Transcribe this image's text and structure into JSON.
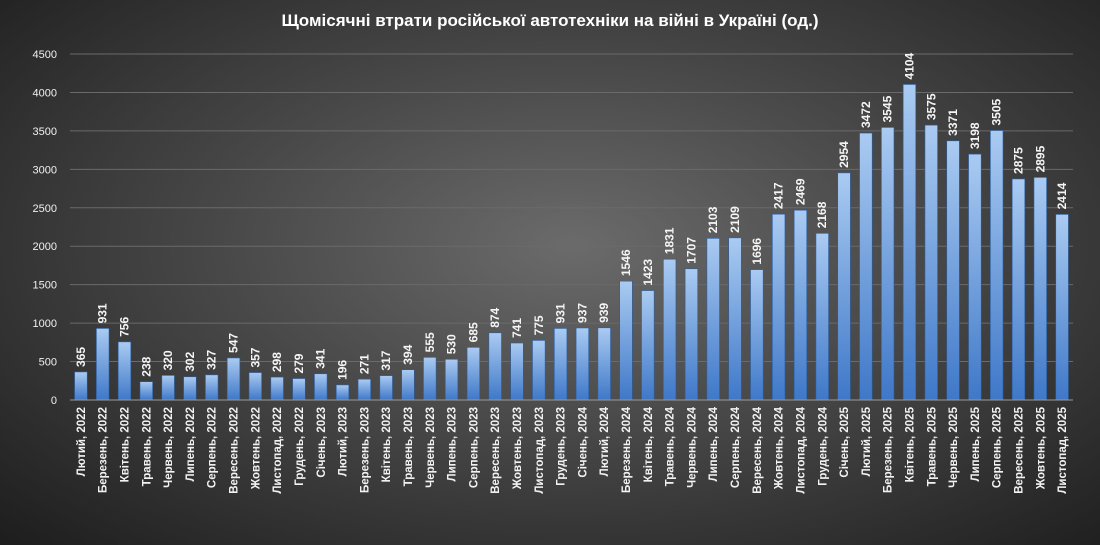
{
  "colors": {
    "bar_top": "#aacbf2",
    "bar_bottom": "#3f78c8",
    "bar_edge": "#2c5d9e",
    "gridline": "#6a6a6a",
    "text": "#ffffff"
  },
  "chart_data": {
    "type": "bar",
    "title": "Щомісячні втрати російської автотехніки на війні в Україні (од.)",
    "xlabel": "",
    "ylabel": "",
    "ylim": [
      0,
      4500
    ],
    "yticks": [
      0,
      500,
      1000,
      1500,
      2000,
      2500,
      3000,
      3500,
      4000,
      4500
    ],
    "grid": true,
    "legend": "none",
    "categories": [
      "Лютий, 2022",
      "Березень, 2022",
      "Квітень, 2022",
      "Травень, 2022",
      "Червень, 2022",
      "Липень, 2022",
      "Серпень, 2022",
      "Вересень, 2022",
      "Жовтень, 2022",
      "Листопад, 2022",
      "Грудень, 2022",
      "Січень, 2023",
      "Лютий, 2023",
      "Березень, 2023",
      "Квітень, 2023",
      "Травень, 2023",
      "Червень, 2023",
      "Липень, 2023",
      "Серпень, 2023",
      "Вересень, 2023",
      "Жовтень, 2023",
      "Листопад, 2023",
      "Грудень, 2023",
      "Січень, 2024",
      "Лютий, 2024",
      "Березень, 2024",
      "Квітень, 2024",
      "Травень, 2024",
      "Червень, 2024",
      "Липень, 2024",
      "Серпень, 2024",
      "Вересень, 2024",
      "Жовтень, 2024",
      "Листопад, 2024",
      "Грудень, 2024",
      "Січень, 2025",
      "Лютий, 2025",
      "Березень, 2025",
      "Квітень, 2025",
      "Травень, 2025",
      "Червень, 2025",
      "Липень, 2025",
      "Серпень, 2025",
      "Вересень, 2025",
      "Жовтень, 2025",
      "Листопад, 2025"
    ],
    "values": [
      365,
      931,
      756,
      238,
      320,
      302,
      327,
      547,
      357,
      298,
      279,
      341,
      196,
      271,
      317,
      394,
      555,
      530,
      685,
      874,
      741,
      775,
      931,
      937,
      939,
      1546,
      1423,
      1831,
      1707,
      2103,
      2109,
      1696,
      2417,
      2469,
      2168,
      2954,
      3472,
      3545,
      4104,
      3575,
      3371,
      3198,
      3505,
      2875,
      2895,
      2414
    ]
  }
}
